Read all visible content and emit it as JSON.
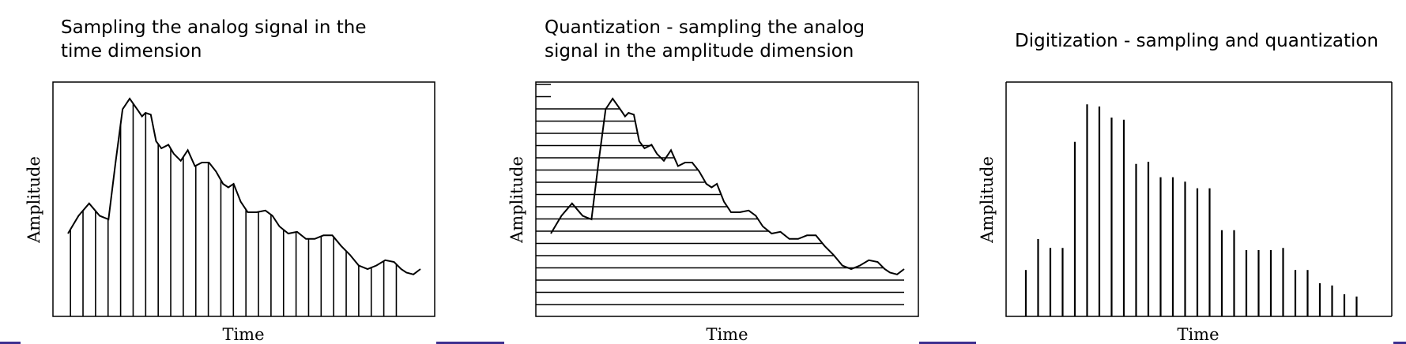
{
  "panels": [
    {
      "title": "Sampling the analog signal in the time dimension",
      "xlabel": "Time",
      "ylabel": "Amplitude"
    },
    {
      "title": "Quantization - sampling the analog signal in the amplitude dimension",
      "xlabel": "Time",
      "ylabel": "Amplitude"
    },
    {
      "title": "Digitization - sampling and quantization",
      "xlabel": "Time",
      "ylabel": "Amplitude"
    }
  ],
  "chart_data": {
    "type": "line",
    "signal": {
      "x": [
        0,
        0.03,
        0.06,
        0.09,
        0.115,
        0.135,
        0.155,
        0.175,
        0.2,
        0.21,
        0.22,
        0.235,
        0.25,
        0.265,
        0.285,
        0.3,
        0.32,
        0.34,
        0.36,
        0.38,
        0.4,
        0.42,
        0.44,
        0.455,
        0.47,
        0.49,
        0.51,
        0.535,
        0.56,
        0.58,
        0.6,
        0.625,
        0.65,
        0.675,
        0.7,
        0.725,
        0.75,
        0.775,
        0.8,
        0.825,
        0.85,
        0.875,
        0.9,
        0.925,
        0.945,
        0.96,
        0.98,
        1.0
      ],
      "y": [
        0.2,
        0.3,
        0.37,
        0.3,
        0.28,
        0.6,
        0.9,
        0.96,
        0.89,
        0.86,
        0.88,
        0.87,
        0.72,
        0.68,
        0.7,
        0.65,
        0.61,
        0.67,
        0.58,
        0.6,
        0.6,
        0.55,
        0.48,
        0.46,
        0.48,
        0.38,
        0.32,
        0.32,
        0.33,
        0.3,
        0.24,
        0.2,
        0.21,
        0.17,
        0.17,
        0.19,
        0.19,
        0.13,
        0.08,
        0.02,
        0.0,
        0.02,
        0.05,
        0.04,
        0.0,
        -0.02,
        -0.03,
        0.0
      ]
    },
    "samples": [
      0.21,
      0.35,
      0.31,
      0.31,
      0.79,
      0.96,
      0.95,
      0.9,
      0.89,
      0.69,
      0.7,
      0.63,
      0.63,
      0.61,
      0.58,
      0.58,
      0.39,
      0.39,
      0.3,
      0.3,
      0.3,
      0.31,
      0.21,
      0.21,
      0.15,
      0.14,
      0.1,
      0.09
    ],
    "quantization_levels": 19
  }
}
